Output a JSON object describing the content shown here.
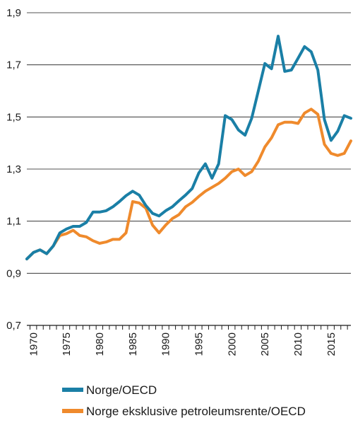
{
  "chart_data": {
    "type": "line",
    "title": "",
    "xlabel": "",
    "ylabel": "",
    "xlim": [
      1969,
      2018
    ],
    "ylim": [
      0.7,
      1.9
    ],
    "grid": "horizontal",
    "legend_position": "bottom",
    "x_ticks": [
      1970,
      1975,
      1980,
      1985,
      1990,
      1995,
      2000,
      2005,
      2010,
      2015
    ],
    "x_tick_labels": [
      "1970",
      "1975",
      "1980",
      "1985",
      "1990",
      "1995",
      "2000",
      "2005",
      "2010",
      "2015"
    ],
    "y_ticks": [
      0.7,
      0.9,
      1.1,
      1.3,
      1.5,
      1.7,
      1.9
    ],
    "y_tick_labels": [
      "0,7",
      "0,9",
      "1,1",
      "1,3",
      "1,5",
      "1,7",
      "1,9"
    ],
    "x": [
      1969,
      1970,
      1971,
      1972,
      1973,
      1974,
      1975,
      1976,
      1977,
      1978,
      1979,
      1980,
      1981,
      1982,
      1983,
      1984,
      1985,
      1986,
      1987,
      1988,
      1989,
      1990,
      1991,
      1992,
      1993,
      1994,
      1995,
      1996,
      1997,
      1998,
      1999,
      2000,
      2001,
      2002,
      2003,
      2004,
      2005,
      2006,
      2007,
      2008,
      2009,
      2010,
      2011,
      2012,
      2013,
      2014,
      2015,
      2016,
      2017,
      2018
    ],
    "series": [
      {
        "name": "Norge/OECD",
        "color": "#1a7fa6",
        "values": [
          0.955,
          0.98,
          0.99,
          0.975,
          1.005,
          1.055,
          1.07,
          1.08,
          1.08,
          1.095,
          1.135,
          1.135,
          1.14,
          1.155,
          1.175,
          1.198,
          1.215,
          1.2,
          1.16,
          1.13,
          1.12,
          1.14,
          1.155,
          1.178,
          1.2,
          1.225,
          1.285,
          1.32,
          1.265,
          1.32,
          1.505,
          1.49,
          1.45,
          1.43,
          1.495,
          1.6,
          1.705,
          1.685,
          1.81,
          1.675,
          1.68,
          1.725,
          1.77,
          1.75,
          1.68,
          1.49,
          1.41,
          1.445,
          1.505,
          1.495
        ]
      },
      {
        "name": "Norge eksklusive petroleumsrente/OECD",
        "color": "#ef8a2c",
        "values": [
          0.955,
          0.98,
          0.99,
          0.975,
          1.005,
          1.045,
          1.052,
          1.065,
          1.045,
          1.04,
          1.025,
          1.015,
          1.02,
          1.03,
          1.03,
          1.055,
          1.175,
          1.17,
          1.15,
          1.085,
          1.055,
          1.085,
          1.11,
          1.125,
          1.155,
          1.172,
          1.195,
          1.215,
          1.23,
          1.245,
          1.265,
          1.29,
          1.3,
          1.275,
          1.29,
          1.33,
          1.385,
          1.42,
          1.47,
          1.48,
          1.48,
          1.475,
          1.515,
          1.53,
          1.51,
          1.395,
          1.36,
          1.352,
          1.36,
          1.408
        ]
      }
    ]
  }
}
